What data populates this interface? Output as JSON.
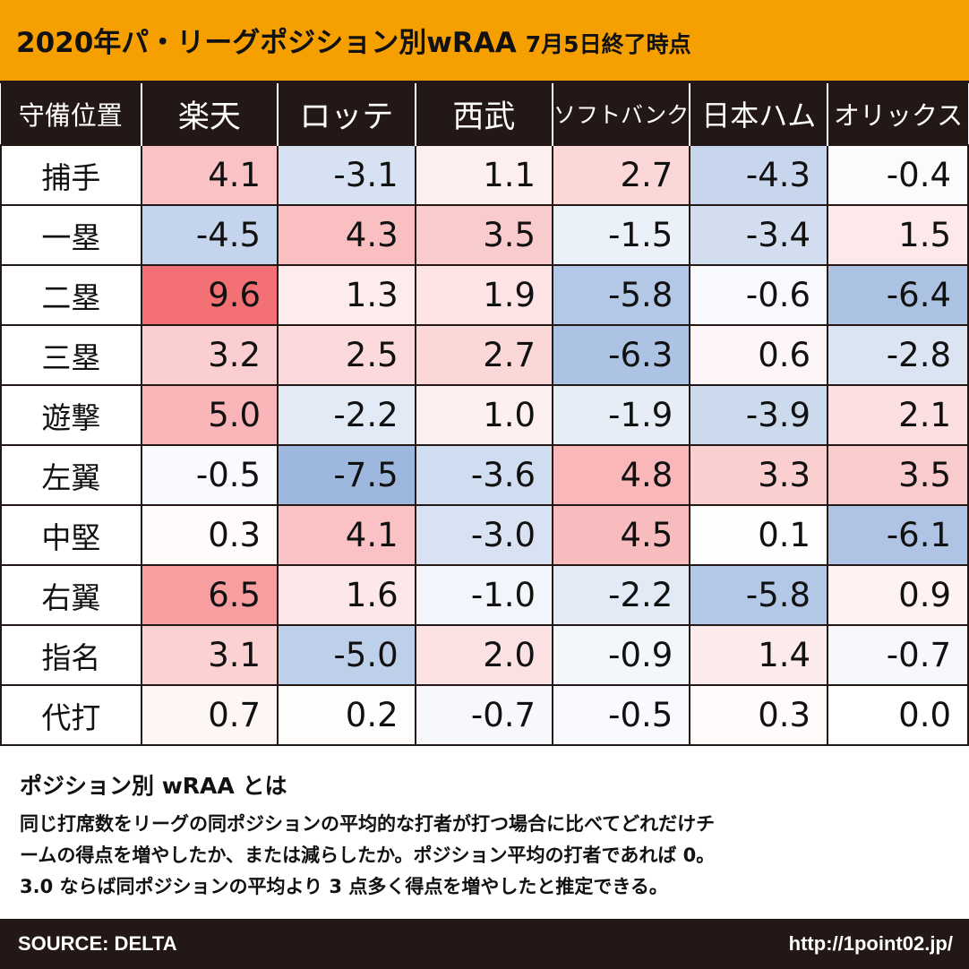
{
  "header": {
    "title": "2020年パ・リーグポジション別wRAA",
    "date": "7月5日終了時点",
    "accent_color": "#f5a000"
  },
  "chart_data": {
    "type": "heatmap",
    "corner_label": "守備位置",
    "columns": [
      "楽天",
      "ロッテ",
      "西武",
      "ソフトバンク",
      "日本ハム",
      "オリックス"
    ],
    "rows": [
      "捕手",
      "一塁",
      "二塁",
      "三塁",
      "遊撃",
      "左翼",
      "中堅",
      "右翼",
      "指名",
      "代打"
    ],
    "values": [
      [
        "4.1",
        "-3.1",
        "1.1",
        "2.7",
        "-4.3",
        "-0.4"
      ],
      [
        "-4.5",
        "4.3",
        "3.5",
        "-1.5",
        "-3.4",
        "1.5"
      ],
      [
        "9.6",
        "1.3",
        "1.9",
        "-5.8",
        "-0.6",
        "-6.4"
      ],
      [
        "3.2",
        "2.5",
        "2.7",
        "-6.3",
        "0.6",
        "-2.8"
      ],
      [
        "5.0",
        "-2.2",
        "1.0",
        "-1.9",
        "-3.9",
        "2.1"
      ],
      [
        "-0.5",
        "-7.5",
        "-3.6",
        "4.8",
        "3.3",
        "3.5"
      ],
      [
        "0.3",
        "4.1",
        "-3.0",
        "4.5",
        "0.1",
        "-6.1"
      ],
      [
        "6.5",
        "1.6",
        "-1.0",
        "-2.2",
        "-5.8",
        "0.9"
      ],
      [
        "3.1",
        "-5.0",
        "2.0",
        "-0.9",
        "1.4",
        "-0.7"
      ],
      [
        "0.7",
        "0.2",
        "-0.7",
        "-0.5",
        "0.3",
        "0.0"
      ]
    ],
    "color_scale": {
      "positive": "#f26a6f",
      "negative": "#7c9fd4",
      "neutral": "#ffffff"
    }
  },
  "description": {
    "title": "ポジション別 wRAA とは",
    "lines": [
      "同じ打席数をリーグの同ポジションの平均的な打者が打つ場合に比べてどれだけチ",
      "ームの得点を増やしたか、または減らしたか。ポジション平均の打者であれば 0。",
      "3.0 ならば同ポジションの平均より 3 点多く得点を増やしたと推定できる。"
    ]
  },
  "footer": {
    "source": "SOURCE: DELTA",
    "url": "http://1point02.jp/"
  }
}
